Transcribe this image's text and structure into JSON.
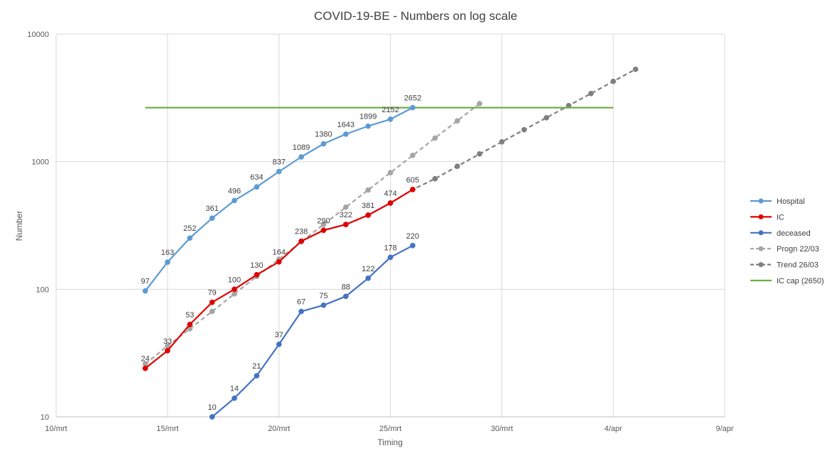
{
  "chart_data": {
    "type": "line",
    "title": "COVID-19-BE - Numbers on log scale",
    "xlabel": "Timing",
    "ylabel": "Number",
    "yscale": "log",
    "ylim": [
      10,
      10000
    ],
    "y_ticks": [
      "10",
      "100",
      "1000",
      "10000"
    ],
    "xlim": [
      "2020-03-10",
      "2020-04-09"
    ],
    "x_ticks": [
      "10/mrt",
      "15/mrt",
      "20/mrt",
      "25/mrt",
      "30/mrt",
      "4/apr",
      "9/apr"
    ],
    "grid": true,
    "legend_position": "right",
    "series": [
      {
        "name": "Hospital",
        "color": "#5b9bd5",
        "style": "solid",
        "show_labels": true,
        "x": [
          "2020-03-14",
          "2020-03-15",
          "2020-03-16",
          "2020-03-17",
          "2020-03-18",
          "2020-03-19",
          "2020-03-20",
          "2020-03-21",
          "2020-03-22",
          "2020-03-23",
          "2020-03-24",
          "2020-03-25",
          "2020-03-26"
        ],
        "y": [
          97,
          163,
          252,
          361,
          496,
          634,
          837,
          1089,
          1380,
          1643,
          1899,
          2152,
          2652
        ]
      },
      {
        "name": "IC",
        "color": "#e00000",
        "style": "solid",
        "show_labels": true,
        "x": [
          "2020-03-14",
          "2020-03-15",
          "2020-03-16",
          "2020-03-17",
          "2020-03-18",
          "2020-03-19",
          "2020-03-20",
          "2020-03-21",
          "2020-03-22",
          "2020-03-23",
          "2020-03-24",
          "2020-03-25",
          "2020-03-26"
        ],
        "y": [
          24,
          33,
          53,
          79,
          100,
          130,
          164,
          238,
          290,
          322,
          381,
          474,
          605
        ]
      },
      {
        "name": "deceased",
        "color": "#4472c4",
        "style": "solid",
        "show_labels": true,
        "x": [
          "2020-03-17",
          "2020-03-18",
          "2020-03-19",
          "2020-03-20",
          "2020-03-21",
          "2020-03-22",
          "2020-03-23",
          "2020-03-24",
          "2020-03-25",
          "2020-03-26"
        ],
        "y": [
          10,
          14,
          21,
          37,
          67,
          75,
          88,
          122,
          178,
          220
        ]
      },
      {
        "name": "Progn 22/03",
        "color": "#a5a5a5",
        "style": "dashed",
        "show_labels": false,
        "x": [
          "2020-03-14",
          "2020-03-15",
          "2020-03-16",
          "2020-03-17",
          "2020-03-18",
          "2020-03-19",
          "2020-03-20",
          "2020-03-21",
          "2020-03-22",
          "2020-03-23",
          "2020-03-24",
          "2020-03-25",
          "2020-03-26",
          "2020-03-27",
          "2020-03-28",
          "2020-03-29"
        ],
        "y": [
          26,
          36,
          49,
          67,
          92,
          126,
          172,
          236,
          322,
          440,
          600,
          820,
          1120,
          1530,
          2090,
          2850
        ]
      },
      {
        "name": "Trend 26/03",
        "color": "#7f7f7f",
        "style": "dashed",
        "show_labels": false,
        "x": [
          "2020-03-21",
          "2020-03-22",
          "2020-03-23",
          "2020-03-24",
          "2020-03-25",
          "2020-03-26",
          "2020-03-27",
          "2020-03-28",
          "2020-03-29",
          "2020-03-30",
          "2020-03-31",
          "2020-04-01",
          "2020-04-02",
          "2020-04-03",
          "2020-04-04",
          "2020-04-05"
        ],
        "y": [
          238,
          290,
          322,
          381,
          474,
          605,
          735,
          920,
          1150,
          1430,
          1780,
          2210,
          2750,
          3420,
          4260,
          5300
        ]
      },
      {
        "name": "IC cap (2650)",
        "color": "#70ad47",
        "style": "solid",
        "markers": false,
        "show_labels": false,
        "x": [
          "2020-03-14",
          "2020-04-04"
        ],
        "y": [
          2650,
          2650
        ]
      }
    ]
  }
}
